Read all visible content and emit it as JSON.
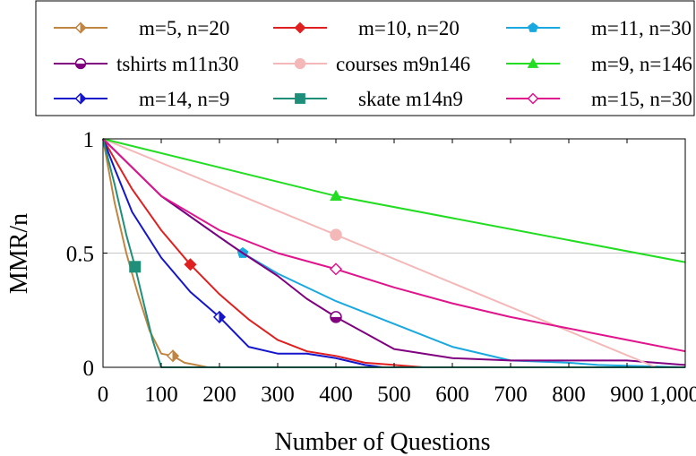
{
  "chart_data": {
    "type": "line",
    "xlabel": "Number of Questions",
    "ylabel": "MMR/n",
    "xlim": [
      0,
      1000
    ],
    "ylim": [
      0,
      1
    ],
    "x_ticks": [
      "0",
      "100",
      "200",
      "300",
      "400",
      "500",
      "600",
      "700",
      "800",
      "900",
      "1,000"
    ],
    "y_ticks": [
      "0",
      "0.5",
      "1"
    ],
    "gridlines": "horizontal at 0.5",
    "legend_position": "top",
    "series": [
      {
        "name": "m=5, n=20",
        "color": "#c08540",
        "marker": "diamond-half",
        "x": [
          0,
          20,
          40,
          60,
          80,
          100,
          120,
          140,
          160,
          180,
          200
        ],
        "y": [
          1,
          0.72,
          0.5,
          0.32,
          0.16,
          0.06,
          0.05,
          0.02,
          0.01,
          0,
          0
        ],
        "markers": [
          [
            120,
            0.05
          ]
        ]
      },
      {
        "name": "m=10, n=20",
        "color": "#e02020",
        "marker": "diamond-filled",
        "x": [
          0,
          50,
          100,
          150,
          200,
          250,
          300,
          350,
          400,
          450,
          500,
          550,
          600
        ],
        "y": [
          1,
          0.78,
          0.6,
          0.45,
          0.32,
          0.21,
          0.12,
          0.07,
          0.05,
          0.02,
          0.01,
          0,
          0
        ],
        "markers": [
          [
            150,
            0.45
          ]
        ]
      },
      {
        "name": "m=11, n=30",
        "color": "#19a9e0",
        "marker": "pentagon-filled",
        "x": [
          0,
          100,
          200,
          240,
          300,
          400,
          500,
          600,
          700,
          800,
          850,
          1000
        ],
        "y": [
          1,
          0.75,
          0.57,
          0.5,
          0.41,
          0.29,
          0.19,
          0.09,
          0.03,
          0.02,
          0.01,
          0
        ],
        "markers": [
          [
            240,
            0.5
          ]
        ]
      },
      {
        "name": "tshirts m11n30",
        "color": "#800080",
        "marker": "circle-half",
        "x": [
          0,
          100,
          200,
          240,
          300,
          350,
          400,
          450,
          500,
          600,
          700,
          800,
          900,
          1000
        ],
        "y": [
          1,
          0.75,
          0.57,
          0.5,
          0.4,
          0.3,
          0.22,
          0.15,
          0.08,
          0.04,
          0.03,
          0.03,
          0.03,
          0.01
        ],
        "markers": [
          [
            400,
            0.22
          ]
        ]
      },
      {
        "name": "courses m9n146",
        "color": "#f5b8b8",
        "marker": "circle-filled",
        "x": [
          0,
          400,
          950
        ],
        "y": [
          1,
          0.58,
          0
        ],
        "markers": [
          [
            400,
            0.58
          ]
        ]
      },
      {
        "name": "m=9, n=146",
        "color": "#22dd22",
        "marker": "triangle-filled",
        "x": [
          0,
          400,
          1000
        ],
        "y": [
          1,
          0.75,
          0.46
        ],
        "markers": [
          [
            400,
            0.75
          ]
        ]
      },
      {
        "name": "m=14, n=9",
        "color": "#1515cc",
        "marker": "diamond-half",
        "x": [
          0,
          20,
          50,
          100,
          150,
          200,
          250,
          300,
          350,
          400,
          450,
          480
        ],
        "y": [
          1,
          0.87,
          0.68,
          0.48,
          0.33,
          0.22,
          0.09,
          0.06,
          0.06,
          0.04,
          0.01,
          0
        ],
        "markers": [
          [
            200,
            0.22
          ]
        ]
      },
      {
        "name": "skate m14n9",
        "color": "#1f8f7a",
        "marker": "square-filled",
        "x": [
          0,
          20,
          40,
          55,
          70,
          85,
          100,
          1000
        ],
        "y": [
          1,
          0.8,
          0.58,
          0.44,
          0.28,
          0.12,
          0,
          0
        ],
        "markers": [
          [
            55,
            0.44
          ]
        ]
      },
      {
        "name": "m=15, n=30",
        "color": "#e0148c",
        "marker": "diamond-open",
        "x": [
          0,
          100,
          200,
          300,
          400,
          500,
          600,
          700,
          800,
          900,
          1000
        ],
        "y": [
          1,
          0.75,
          0.6,
          0.5,
          0.43,
          0.35,
          0.28,
          0.22,
          0.17,
          0.12,
          0.07
        ],
        "markers": [
          [
            400,
            0.43
          ]
        ]
      }
    ]
  }
}
